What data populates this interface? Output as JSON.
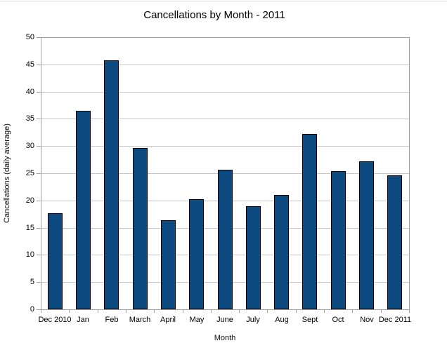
{
  "chart_data": {
    "type": "bar",
    "title": "Cancellations by Month - 2011",
    "xlabel": "Month",
    "ylabel": "Cancellations (daily average)",
    "categories": [
      "Dec 2010",
      "Jan",
      "Feb",
      "March",
      "April",
      "May",
      "June",
      "July",
      "Aug",
      "Sept",
      "Oct",
      "Nov",
      "Dec 2011"
    ],
    "values": [
      17.6,
      36.5,
      45.7,
      29.6,
      16.4,
      20.2,
      25.6,
      19.0,
      21.0,
      32.2,
      25.4,
      27.2,
      24.6
    ],
    "ylim": [
      0,
      50
    ],
    "ytick_step": 5,
    "yticks": [
      0,
      5,
      10,
      15,
      20,
      25,
      30,
      35,
      40,
      45,
      50
    ],
    "grid": true,
    "legend": "none",
    "colors": {
      "bar_fill": "#0d4a80",
      "bar_border": "#000000",
      "gridline": "#c6c6c6",
      "axis": "#a0a0a0",
      "text": "#000000",
      "top_rule": "#d8d8d8"
    }
  }
}
